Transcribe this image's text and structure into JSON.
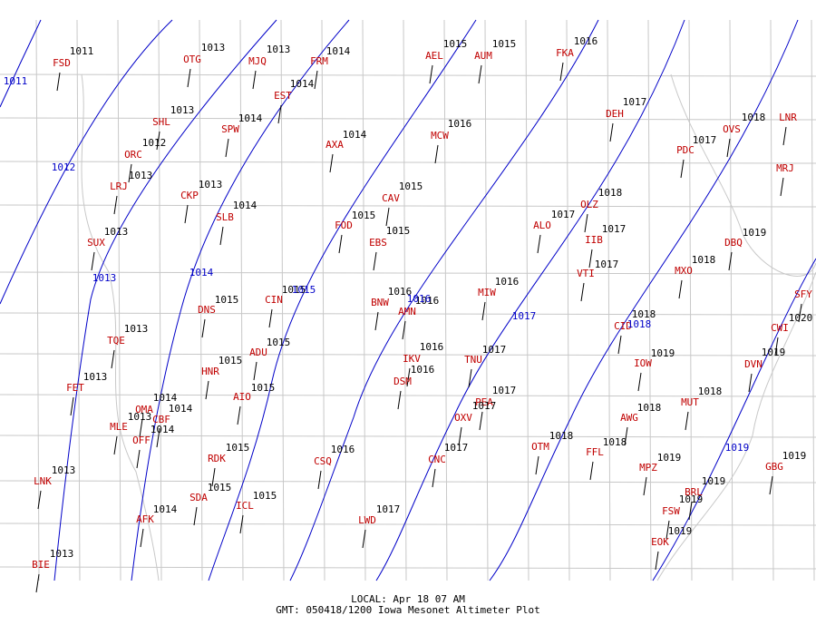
{
  "stations": [
    {
      "id": "FSD",
      "altimeter": 1011
    },
    {
      "id": "OTG",
      "altimeter": 1013
    },
    {
      "id": "MJQ",
      "altimeter": 1013
    },
    {
      "id": "FRM",
      "altimeter": 1014
    },
    {
      "id": "AEL",
      "altimeter": 1015
    },
    {
      "id": "AUM",
      "altimeter": 1015
    },
    {
      "id": "FKA",
      "altimeter": 1016
    },
    {
      "id": "EST",
      "altimeter": 1014
    },
    {
      "id": "SHL",
      "altimeter": 1013
    },
    {
      "id": "SPW",
      "altimeter": 1014
    },
    {
      "id": "AXA",
      "altimeter": 1014
    },
    {
      "id": "MCW",
      "altimeter": 1016
    },
    {
      "id": "DEH",
      "altimeter": 1017
    },
    {
      "id": "OVS",
      "altimeter": 1018
    },
    {
      "id": "LNR"
    },
    {
      "id": "PDC",
      "altimeter": 1017
    },
    {
      "id": "ORC",
      "altimeter": 1012
    },
    {
      "id": "LRJ",
      "altimeter": 1013
    },
    {
      "id": "MRJ"
    },
    {
      "id": "CKP",
      "altimeter": 1013
    },
    {
      "id": "SLB",
      "altimeter": 1014
    },
    {
      "id": "CAV",
      "altimeter": 1015
    },
    {
      "id": "FOD",
      "altimeter": 1015
    },
    {
      "id": "OLZ",
      "altimeter": 1018
    },
    {
      "id": "ALO",
      "altimeter": 1017
    },
    {
      "id": "IIB",
      "altimeter": 1017
    },
    {
      "id": "SUX",
      "altimeter": 1013
    },
    {
      "id": "EBS",
      "altimeter": 1015
    },
    {
      "id": "DBQ",
      "altimeter": 1019
    },
    {
      "id": "MXO",
      "altimeter": 1018
    },
    {
      "id": "VTI",
      "altimeter": 1017
    },
    {
      "id": "SFY"
    },
    {
      "id": "MIW",
      "altimeter": 1016
    },
    {
      "id": "DNS",
      "altimeter": 1015
    },
    {
      "id": "CIN",
      "altimeter": 1015
    },
    {
      "id": "BNW",
      "altimeter": 1016
    },
    {
      "id": "AMN",
      "altimeter": 1016
    },
    {
      "id": "CID",
      "altimeter": 1018
    },
    {
      "id": "CWI",
      "altimeter": 1020
    },
    {
      "id": "TQE",
      "altimeter": 1013
    },
    {
      "id": "ADU",
      "altimeter": 1015
    },
    {
      "id": "IOW",
      "altimeter": 1019
    },
    {
      "id": "IKV",
      "altimeter": 1016
    },
    {
      "id": "TNU",
      "altimeter": 1017
    },
    {
      "id": "DVN",
      "altimeter": 1019
    },
    {
      "id": "HNR",
      "altimeter": 1015
    },
    {
      "id": "DSM",
      "altimeter": 1016
    },
    {
      "id": "FET",
      "altimeter": 1013
    },
    {
      "id": "AIO",
      "altimeter": 1015
    },
    {
      "id": "PEA",
      "altimeter": 1017
    },
    {
      "id": "MUT",
      "altimeter": 1018
    },
    {
      "id": "OMA",
      "altimeter": 1014
    },
    {
      "id": "CBF",
      "altimeter": 1014
    },
    {
      "id": "OXV",
      "altimeter": 1017
    },
    {
      "id": "AWG",
      "altimeter": 1018
    },
    {
      "id": "MLE",
      "altimeter": 1013
    },
    {
      "id": "OFF",
      "altimeter": 1014
    },
    {
      "id": "OTM",
      "altimeter": 1018
    },
    {
      "id": "FFL",
      "altimeter": 1018
    },
    {
      "id": "CNC",
      "altimeter": 1017
    },
    {
      "id": "RDK",
      "altimeter": 1015
    },
    {
      "id": "CSQ",
      "altimeter": 1016
    },
    {
      "id": "MPZ",
      "altimeter": 1019
    },
    {
      "id": "GBG",
      "altimeter": 1019
    },
    {
      "id": "LNK",
      "altimeter": 1013
    },
    {
      "id": "BRL",
      "altimeter": 1019
    },
    {
      "id": "SDA",
      "altimeter": 1015
    },
    {
      "id": "ICL",
      "altimeter": 1015
    },
    {
      "id": "FSW",
      "altimeter": 1019
    },
    {
      "id": "AFK",
      "altimeter": 1014
    },
    {
      "id": "LWD",
      "altimeter": 1017
    },
    {
      "id": "EOK",
      "altimeter": 1019
    },
    {
      "id": "BIE",
      "altimeter": 1013
    }
  ],
  "isobar_labels": [
    1011,
    1012,
    1013,
    1014,
    1015,
    1016,
    1017,
    1018,
    1019
  ],
  "footer": {
    "local": "LOCAL: Apr 18 07 AM",
    "gmt": "GMT: 050418/1200 Iowa Mesonet Altimeter Plot"
  }
}
